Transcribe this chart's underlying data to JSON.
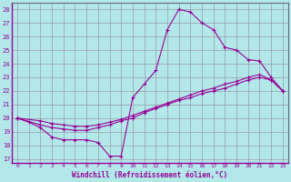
{
  "xlabel": "Windchill (Refroidissement éolien,°C)",
  "bg_color": "#b2e8e8",
  "grid_color": "#9999aa",
  "line_color": "#990099",
  "xlim": [
    -0.5,
    23.5
  ],
  "ylim": [
    16.7,
    28.5
  ],
  "xticks": [
    0,
    1,
    2,
    3,
    4,
    5,
    6,
    7,
    8,
    9,
    10,
    11,
    12,
    13,
    14,
    15,
    16,
    17,
    18,
    19,
    20,
    21,
    22,
    23
  ],
  "yticks": [
    17,
    18,
    19,
    20,
    21,
    22,
    23,
    24,
    25,
    26,
    27,
    28
  ],
  "line1_x": [
    0,
    1,
    2,
    3,
    4,
    5,
    6,
    7,
    8,
    9,
    10,
    11,
    12,
    13,
    14,
    15,
    16,
    17,
    18,
    19,
    20,
    21,
    22,
    23
  ],
  "line1_y": [
    20.0,
    19.7,
    19.3,
    18.6,
    18.4,
    18.4,
    18.4,
    18.2,
    17.2,
    17.2,
    21.5,
    22.5,
    23.5,
    26.5,
    28.0,
    27.8,
    27.0,
    26.5,
    25.2,
    25.0,
    24.3,
    24.2,
    23.0,
    22.0
  ],
  "line2_x": [
    0,
    2,
    3,
    4,
    5,
    6,
    7,
    8,
    9,
    10,
    11,
    12,
    13,
    14,
    15,
    16,
    17,
    18,
    19,
    20,
    21,
    22,
    23
  ],
  "line2_y": [
    20.0,
    19.5,
    19.3,
    19.2,
    19.1,
    19.1,
    19.3,
    19.5,
    19.8,
    20.0,
    20.4,
    20.7,
    21.0,
    21.3,
    21.5,
    21.8,
    22.0,
    22.2,
    22.5,
    22.8,
    23.0,
    22.8,
    22.0
  ],
  "line3_x": [
    0,
    2,
    3,
    4,
    5,
    6,
    7,
    8,
    9,
    10,
    11,
    12,
    13,
    14,
    15,
    16,
    17,
    18,
    19,
    20,
    21,
    22,
    23
  ],
  "line3_y": [
    20.0,
    19.8,
    19.6,
    19.5,
    19.4,
    19.4,
    19.5,
    19.7,
    19.9,
    20.2,
    20.5,
    20.8,
    21.1,
    21.4,
    21.7,
    22.0,
    22.2,
    22.5,
    22.7,
    23.0,
    23.2,
    22.8,
    22.0
  ]
}
